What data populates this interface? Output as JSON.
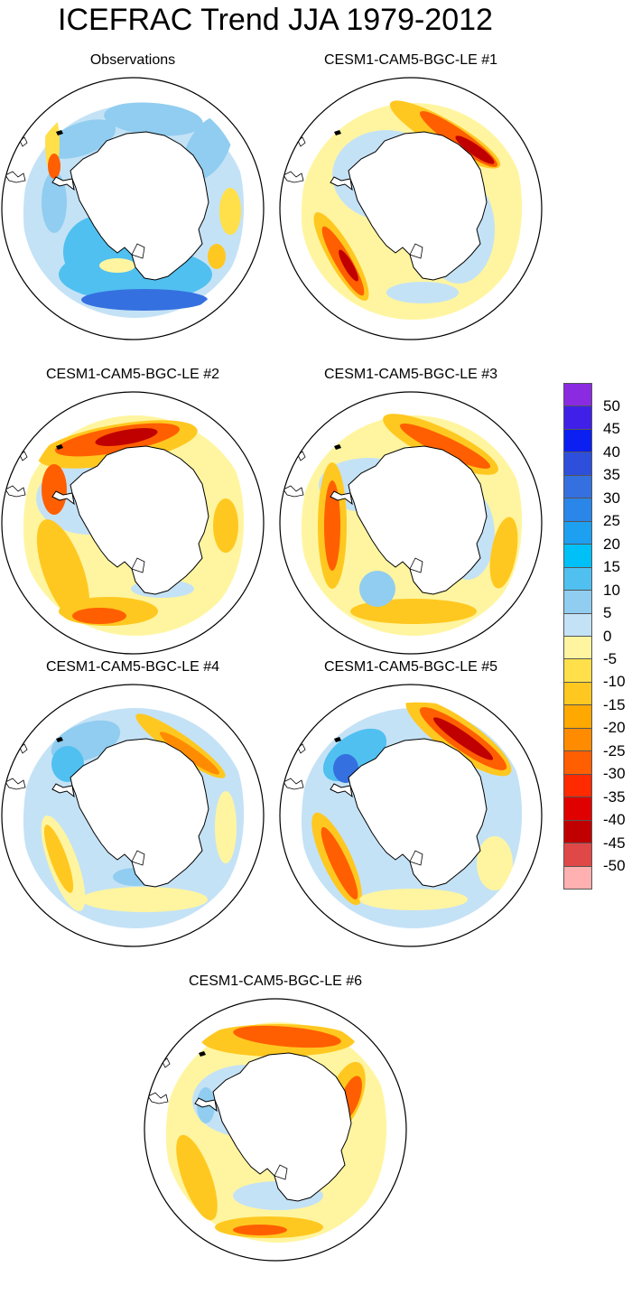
{
  "title": "ICEFRAC Trend JJA 1979-2012",
  "panels": [
    {
      "label": "Observations",
      "pattern": "obs"
    },
    {
      "label": "CESM1-CAM5-BGC-LE #1",
      "pattern": "m1"
    },
    {
      "label": "CESM1-CAM5-BGC-LE #2",
      "pattern": "m2"
    },
    {
      "label": "CESM1-CAM5-BGC-LE #3",
      "pattern": "m3"
    },
    {
      "label": "CESM1-CAM5-BGC-LE #4",
      "pattern": "m4"
    },
    {
      "label": "CESM1-CAM5-BGC-LE #5",
      "pattern": "m5"
    },
    {
      "label": "CESM1-CAM5-BGC-LE #6",
      "pattern": "m6"
    }
  ],
  "colorbar": {
    "labels": [
      "50",
      "45",
      "40",
      "35",
      "30",
      "25",
      "20",
      "15",
      "10",
      "5",
      "0",
      "-5",
      "-10",
      "-15",
      "-20",
      "-25",
      "-30",
      "-35",
      "-40",
      "-45",
      "-50"
    ],
    "colors": [
      "#8a2be2",
      "#4020e8",
      "#0a1ff0",
      "#2d4fdc",
      "#3570e0",
      "#2b86ea",
      "#1ea0f0",
      "#00c0f8",
      "#50c0f0",
      "#90cdf0",
      "#c4e2f6",
      "#fff5a0",
      "#ffe04a",
      "#ffc820",
      "#ffa800",
      "#ff8c00",
      "#ff5f00",
      "#ff2a00",
      "#e00000",
      "#c00000",
      "#e04848",
      "#ffb0b0"
    ]
  }
}
